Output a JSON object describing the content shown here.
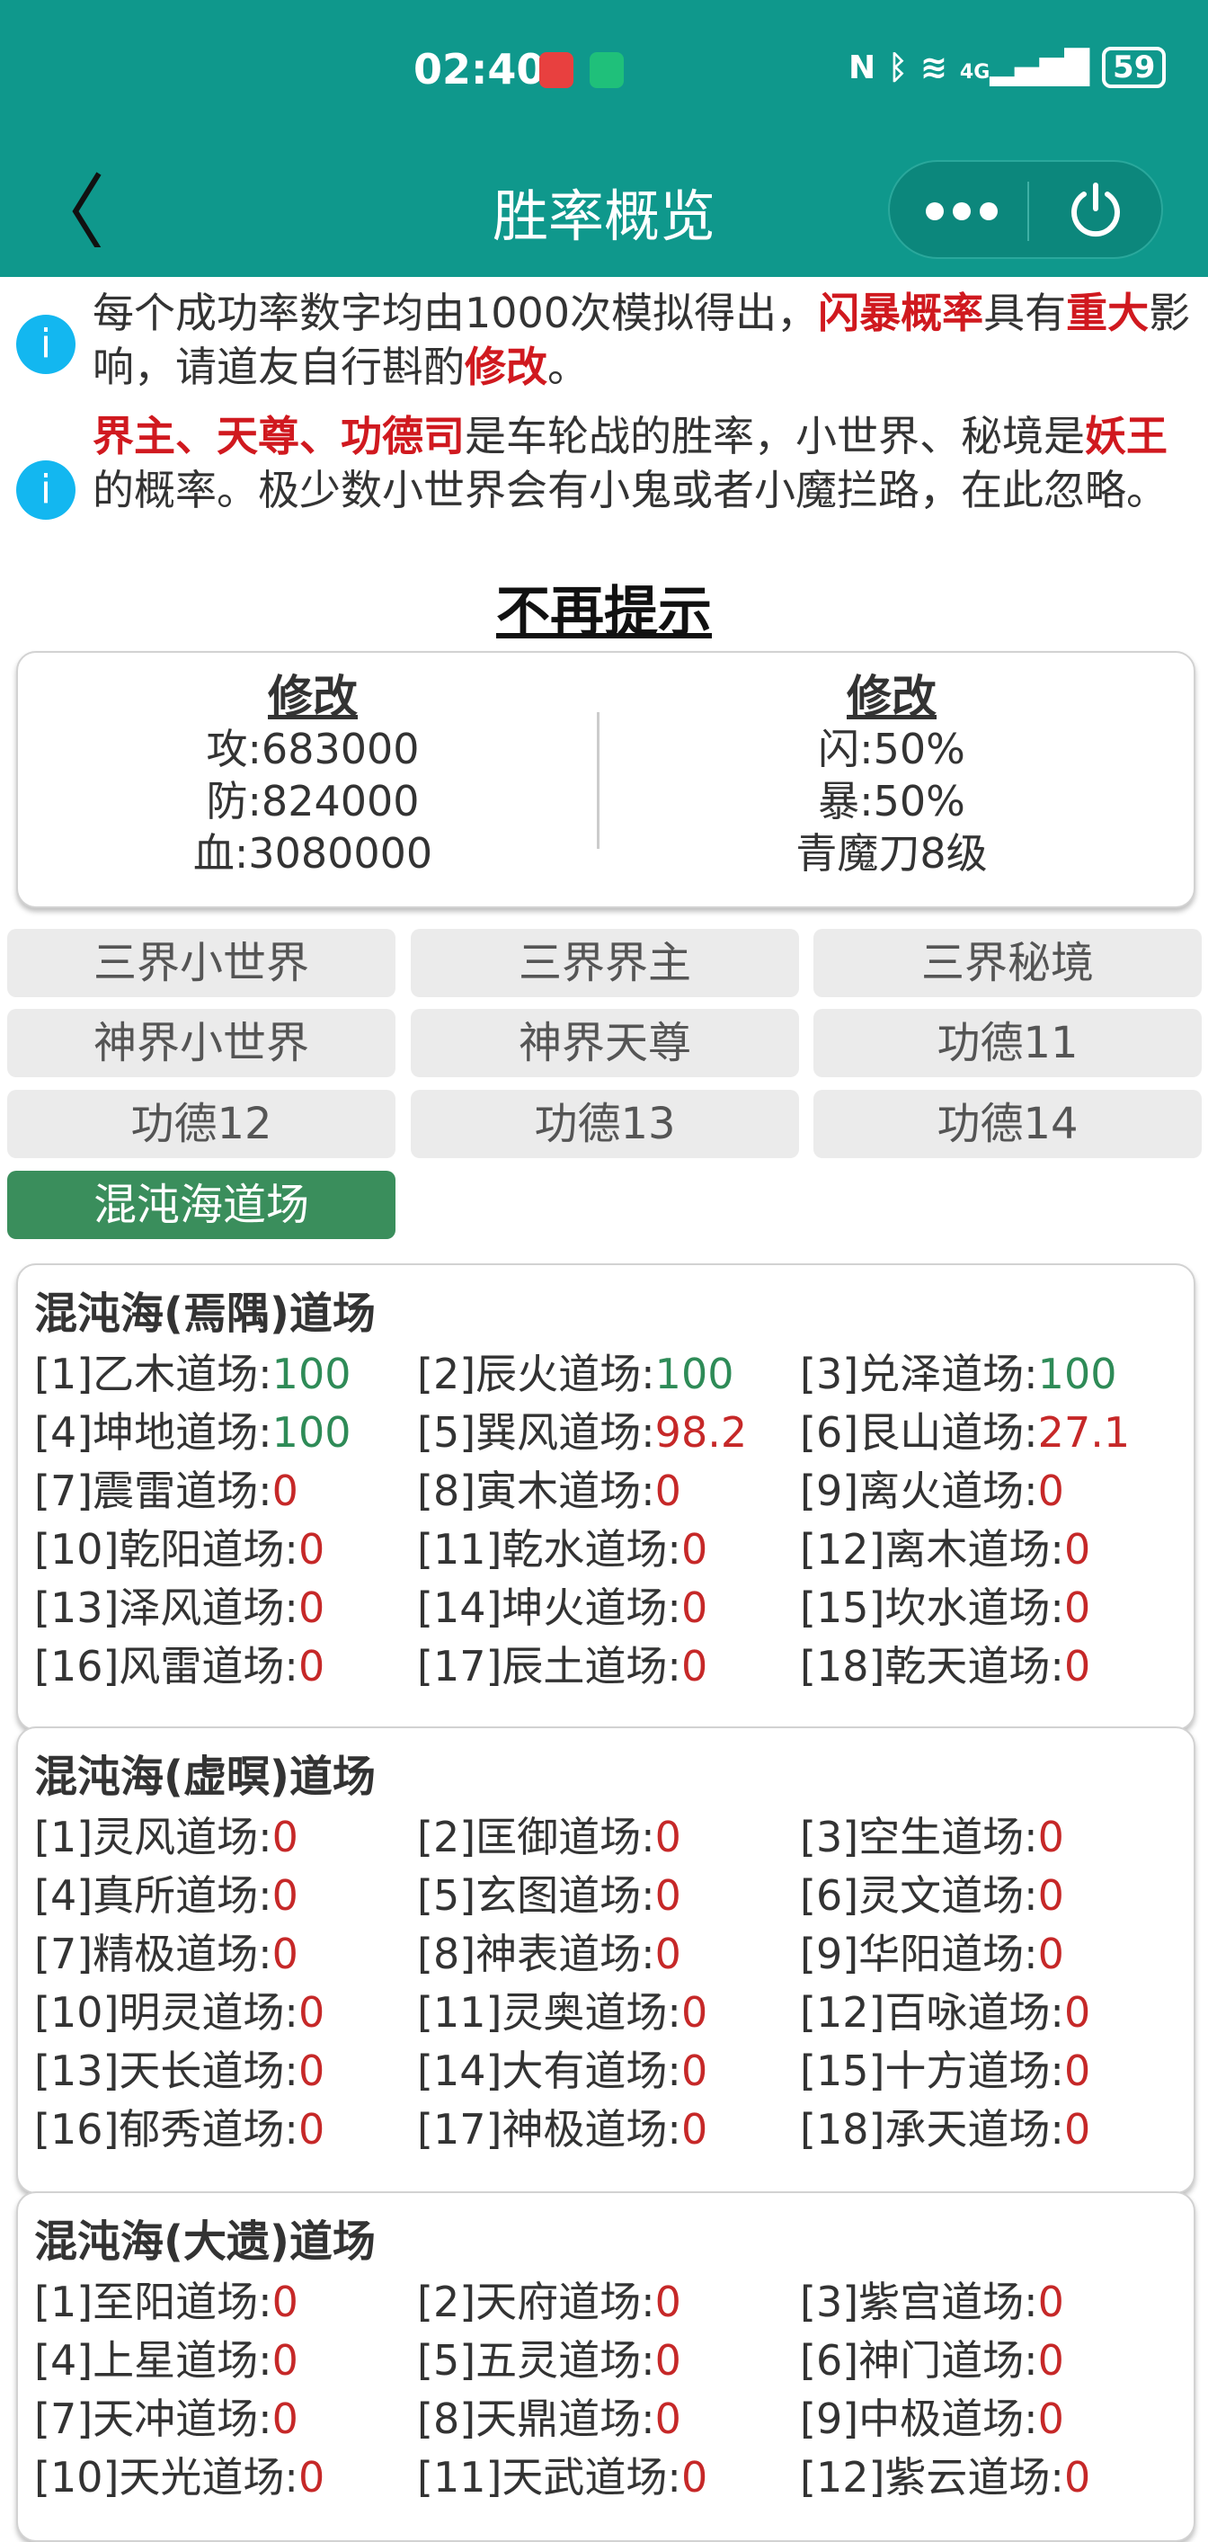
{
  "status_bar": {
    "time": "02:40",
    "app_icons": [
      "huawei-app-icon",
      "mi-home-icon"
    ],
    "indicators": [
      "nfc-icon",
      "bluetooth-icon",
      "wifi-6-icon",
      "4g-signal-icon"
    ],
    "network": "4G",
    "battery": "59"
  },
  "nav": {
    "title": "胜率概览",
    "back_icon": "chevron-left-icon",
    "more_icon": "more-dots-icon",
    "close_icon": "power-icon"
  },
  "notices": [
    {
      "segments": [
        {
          "t": "每个成功率数字均由1000次模拟得出，",
          "red": false
        },
        {
          "t": "闪暴概率",
          "red": true
        },
        {
          "t": "具有",
          "red": false
        },
        {
          "t": "重大",
          "red": true
        },
        {
          "t": "影响，请道友自行斟酌",
          "red": false
        },
        {
          "t": "修改",
          "red": true
        },
        {
          "t": "。",
          "red": false
        }
      ]
    },
    {
      "segments": [
        {
          "t": "界主、天尊、功德司",
          "red": true
        },
        {
          "t": "是车轮战的胜率，小世界、秘境是",
          "red": false
        },
        {
          "t": "妖王",
          "red": true
        },
        {
          "t": "的概率。极少数小世界会有小鬼或者小魔拦路，在此忽略。",
          "red": false
        }
      ]
    }
  ],
  "dismiss_label": "不再提示",
  "edit_card": {
    "left": {
      "heading": "修改",
      "lines": [
        "攻:683000",
        "防:824000",
        "血:3080000"
      ]
    },
    "right": {
      "heading": "修改",
      "lines": [
        "闪:50%",
        "暴:50%",
        "青魔刀8级"
      ]
    }
  },
  "tabs": [
    {
      "label": "三界小世界",
      "active": false
    },
    {
      "label": "三界界主",
      "active": false
    },
    {
      "label": "三界秘境",
      "active": false
    },
    {
      "label": "神界小世界",
      "active": false
    },
    {
      "label": "神界天尊",
      "active": false
    },
    {
      "label": "功德11",
      "active": false
    },
    {
      "label": "功德12",
      "active": false
    },
    {
      "label": "功德13",
      "active": false
    },
    {
      "label": "功德14",
      "active": false
    },
    {
      "label": "混沌海道场",
      "active": true
    }
  ],
  "colors": {
    "header": "#0f988c",
    "success": "#2e8b57",
    "fail": "#c62828",
    "active_tab": "#3a8e5c",
    "emphasis": "#d0191f",
    "info": "#13b7f0"
  },
  "sections": [
    {
      "title": "混沌海(焉隅)道场",
      "items": [
        {
          "label": "[1]乙木道场:",
          "value": "100"
        },
        {
          "label": "[2]辰火道场:",
          "value": "100"
        },
        {
          "label": "[3]兑泽道场:",
          "value": "100"
        },
        {
          "label": "[4]坤地道场:",
          "value": "100"
        },
        {
          "label": "[5]巽风道场:",
          "value": "98.2"
        },
        {
          "label": "[6]艮山道场:",
          "value": "27.1"
        },
        {
          "label": "[7]震雷道场:",
          "value": "0"
        },
        {
          "label": "[8]寅木道场:",
          "value": "0"
        },
        {
          "label": "[9]离火道场:",
          "value": "0"
        },
        {
          "label": "[10]乾阳道场:",
          "value": "0"
        },
        {
          "label": "[11]乾水道场:",
          "value": "0"
        },
        {
          "label": "[12]离木道场:",
          "value": "0"
        },
        {
          "label": "[13]泽风道场:",
          "value": "0"
        },
        {
          "label": "[14]坤火道场:",
          "value": "0"
        },
        {
          "label": "[15]坎水道场:",
          "value": "0"
        },
        {
          "label": "[16]风雷道场:",
          "value": "0"
        },
        {
          "label": "[17]辰土道场:",
          "value": "0"
        },
        {
          "label": "[18]乾天道场:",
          "value": "0"
        }
      ]
    },
    {
      "title": "混沌海(虚暝)道场",
      "items": [
        {
          "label": "[1]灵风道场:",
          "value": "0"
        },
        {
          "label": "[2]匡御道场:",
          "value": "0"
        },
        {
          "label": "[3]空生道场:",
          "value": "0"
        },
        {
          "label": "[4]真所道场:",
          "value": "0"
        },
        {
          "label": "[5]玄图道场:",
          "value": "0"
        },
        {
          "label": "[6]灵文道场:",
          "value": "0"
        },
        {
          "label": "[7]精极道场:",
          "value": "0"
        },
        {
          "label": "[8]神表道场:",
          "value": "0"
        },
        {
          "label": "[9]华阳道场:",
          "value": "0"
        },
        {
          "label": "[10]明灵道场:",
          "value": "0"
        },
        {
          "label": "[11]灵奥道场:",
          "value": "0"
        },
        {
          "label": "[12]百咏道场:",
          "value": "0"
        },
        {
          "label": "[13]天长道场:",
          "value": "0"
        },
        {
          "label": "[14]大有道场:",
          "value": "0"
        },
        {
          "label": "[15]十方道场:",
          "value": "0"
        },
        {
          "label": "[16]郁秀道场:",
          "value": "0"
        },
        {
          "label": "[17]神极道场:",
          "value": "0"
        },
        {
          "label": "[18]承天道场:",
          "value": "0"
        }
      ]
    },
    {
      "title": "混沌海(大遗)道场",
      "items": [
        {
          "label": "[1]至阳道场:",
          "value": "0"
        },
        {
          "label": "[2]天府道场:",
          "value": "0"
        },
        {
          "label": "[3]紫宫道场:",
          "value": "0"
        },
        {
          "label": "[4]上星道场:",
          "value": "0"
        },
        {
          "label": "[5]五灵道场:",
          "value": "0"
        },
        {
          "label": "[6]神门道场:",
          "value": "0"
        },
        {
          "label": "[7]天冲道场:",
          "value": "0"
        },
        {
          "label": "[8]天鼎道场:",
          "value": "0"
        },
        {
          "label": "[9]中极道场:",
          "value": "0"
        },
        {
          "label": "[10]天光道场:",
          "value": "0"
        },
        {
          "label": "[11]天武道场:",
          "value": "0"
        },
        {
          "label": "[12]紫云道场:",
          "value": "0"
        }
      ]
    }
  ]
}
